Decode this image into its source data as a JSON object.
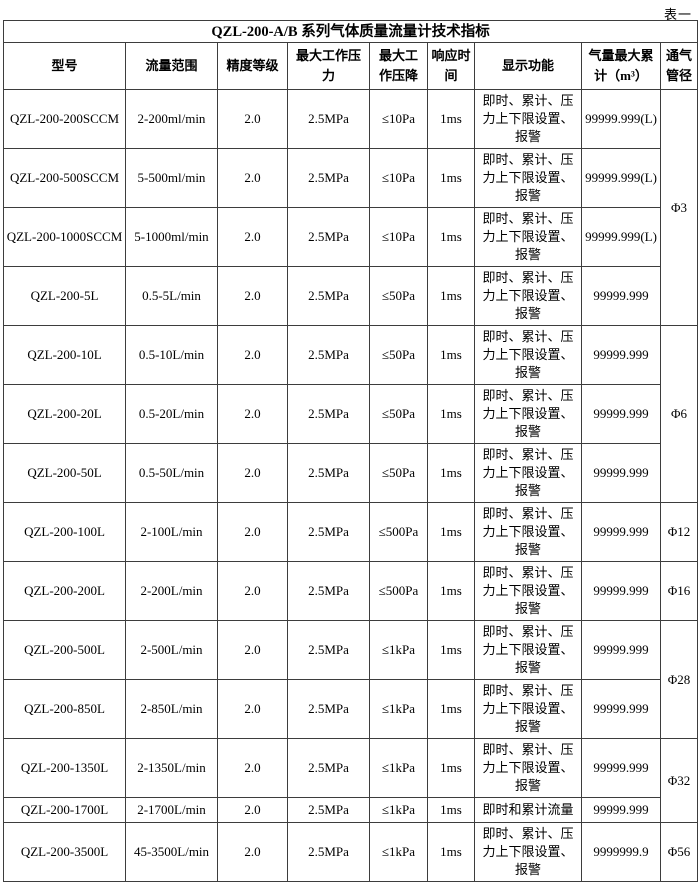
{
  "page_label": "表一",
  "table": {
    "title": "QZL-200-A/B 系列气体质量流量计技术指标",
    "headers": [
      "型号",
      "流量范围",
      "精度等级",
      "最大工作压力",
      "最大工作压降",
      "响应时间",
      "显示功能",
      "气量最大累计（m³）",
      "通气管径"
    ],
    "rows": [
      {
        "model": "QZL-200-200SCCM",
        "flow_range": "2-200ml/min",
        "accuracy": "2.0",
        "max_pressure": "2.5MPa",
        "max_drop": "≤10Pa",
        "response": "1ms",
        "display": "即时、累计、压力上下限设置、报警",
        "total": "99999.999(L)"
      },
      {
        "model": "QZL-200-500SCCM",
        "flow_range": "5-500ml/min",
        "accuracy": "2.0",
        "max_pressure": "2.5MPa",
        "max_drop": "≤10Pa",
        "response": "1ms",
        "display": "即时、累计、压力上下限设置、报警",
        "total": "99999.999(L)"
      },
      {
        "model": "QZL-200-1000SCCM",
        "flow_range": "5-1000ml/min",
        "accuracy": "2.0",
        "max_pressure": "2.5MPa",
        "max_drop": "≤10Pa",
        "response": "1ms",
        "display": "即时、累计、压力上下限设置、报警",
        "total": "99999.999(L)"
      },
      {
        "model": "QZL-200-5L",
        "flow_range": "0.5-5L/min",
        "accuracy": "2.0",
        "max_pressure": "2.5MPa",
        "max_drop": "≤50Pa",
        "response": "1ms",
        "display": "即时、累计、压力上下限设置、报警",
        "total": "99999.999"
      },
      {
        "model": "QZL-200-10L",
        "flow_range": "0.5-10L/min",
        "accuracy": "2.0",
        "max_pressure": "2.5MPa",
        "max_drop": "≤50Pa",
        "response": "1ms",
        "display": "即时、累计、压力上下限设置、报警",
        "total": "99999.999"
      },
      {
        "model": "QZL-200-20L",
        "flow_range": "0.5-20L/min",
        "accuracy": "2.0",
        "max_pressure": "2.5MPa",
        "max_drop": "≤50Pa",
        "response": "1ms",
        "display": "即时、累计、压力上下限设置、报警",
        "total": "99999.999"
      },
      {
        "model": "QZL-200-50L",
        "flow_range": "0.5-50L/min",
        "accuracy": "2.0",
        "max_pressure": "2.5MPa",
        "max_drop": "≤50Pa",
        "response": "1ms",
        "display": "即时、累计、压力上下限设置、报警",
        "total": "99999.999"
      },
      {
        "model": "QZL-200-100L",
        "flow_range": "2-100L/min",
        "accuracy": "2.0",
        "max_pressure": "2.5MPa",
        "max_drop": "≤500Pa",
        "response": "1ms",
        "display": "即时、累计、压力上下限设置、报警",
        "total": "99999.999"
      },
      {
        "model": "QZL-200-200L",
        "flow_range": "2-200L/min",
        "accuracy": "2.0",
        "max_pressure": "2.5MPa",
        "max_drop": "≤500Pa",
        "response": "1ms",
        "display": "即时、累计、压力上下限设置、报警",
        "total": "99999.999"
      },
      {
        "model": "QZL-200-500L",
        "flow_range": "2-500L/min",
        "accuracy": "2.0",
        "max_pressure": "2.5MPa",
        "max_drop": "≤1kPa",
        "response": "1ms",
        "display": "即时、累计、压力上下限设置、报警",
        "total": "99999.999"
      },
      {
        "model": "QZL-200-850L",
        "flow_range": "2-850L/min",
        "accuracy": "2.0",
        "max_pressure": "2.5MPa",
        "max_drop": "≤1kPa",
        "response": "1ms",
        "display": "即时、累计、压力上下限设置、报警",
        "total": "99999.999"
      },
      {
        "model": "QZL-200-1350L",
        "flow_range": "2-1350L/min",
        "accuracy": "2.0",
        "max_pressure": "2.5MPa",
        "max_drop": "≤1kPa",
        "response": "1ms",
        "display": "即时、累计、压力上下限设置、报警",
        "total": "99999.999"
      },
      {
        "model": "QZL-200-1700L",
        "flow_range": "2-1700L/min",
        "accuracy": "2.0",
        "max_pressure": "2.5MPa",
        "max_drop": "≤1kPa",
        "response": "1ms",
        "display": "即时和累计流量",
        "total": "99999.999"
      },
      {
        "model": "QZL-200-3500L",
        "flow_range": "45-3500L/min",
        "accuracy": "2.0",
        "max_pressure": "2.5MPa",
        "max_drop": "≤1kPa",
        "response": "1ms",
        "display": "即时、累计、压力上下限设置、报警",
        "total": "9999999.9"
      }
    ],
    "diameter_groups": [
      {
        "label": "Φ3",
        "rows": 4
      },
      {
        "label": "Φ6",
        "rows": 3
      },
      {
        "label": "Φ12",
        "rows": 1
      },
      {
        "label": "Φ16",
        "rows": 1
      },
      {
        "label": "Φ28",
        "rows": 2
      },
      {
        "label": "Φ32",
        "rows": 2
      },
      {
        "label": "Φ56",
        "rows": 1
      }
    ],
    "colors": {
      "border": "#3d3d3d",
      "text": "#000000",
      "background": "#ffffff"
    }
  }
}
